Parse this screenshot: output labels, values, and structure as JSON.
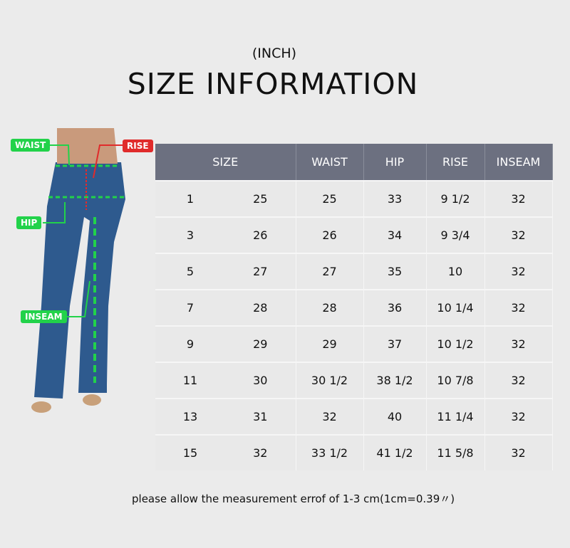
{
  "subtitle": "(INCH)",
  "title": "SIZE INFORMATION",
  "figure": {
    "labels": {
      "waist": "WAIST",
      "rise": "RISE",
      "hip": "HIP",
      "inseam": "INSEAM"
    },
    "colors": {
      "green": "#22d24a",
      "red": "#e02b2b",
      "denim": "#2e5a8e"
    }
  },
  "table": {
    "headers": [
      "SIZE",
      "WAIST",
      "HIP",
      "RISE",
      "INSEAM"
    ],
    "rows": [
      [
        "1",
        "25",
        "25",
        "33",
        "9 1/2",
        "32"
      ],
      [
        "3",
        "26",
        "26",
        "34",
        "9 3/4",
        "32"
      ],
      [
        "5",
        "27",
        "27",
        "35",
        "10",
        "32"
      ],
      [
        "7",
        "28",
        "28",
        "36",
        "10 1/4",
        "32"
      ],
      [
        "9",
        "29",
        "29",
        "37",
        "10 1/2",
        "32"
      ],
      [
        "11",
        "30",
        "30 1/2",
        "38 1/2",
        "10 7/8",
        "32"
      ],
      [
        "13",
        "31",
        "32",
        "40",
        "11 1/4",
        "32"
      ],
      [
        "15",
        "32",
        "33 1/2",
        "41 1/2",
        "11 5/8",
        "32"
      ]
    ]
  },
  "note": "please allow the measurement errof of 1-3 cm(1cm=0.39〃)"
}
